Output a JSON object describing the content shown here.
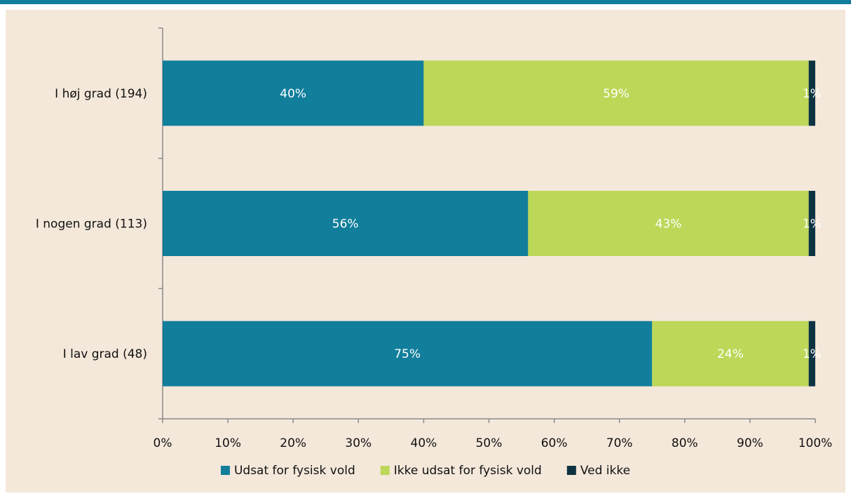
{
  "chart_data": {
    "type": "bar",
    "orientation": "horizontal",
    "stacked": true,
    "categories": [
      "I høj grad (194)",
      "I nogen grad (113)",
      "I lav grad (48)"
    ],
    "series": [
      {
        "name": "Udsat for fysisk vold",
        "values": [
          40,
          56,
          75
        ],
        "labels": [
          "40%",
          "56%",
          "75%"
        ],
        "color": "#117e9b"
      },
      {
        "name": "Ikke udsat for fysisk vold",
        "values": [
          59,
          43,
          24
        ],
        "labels": [
          "59%",
          "43%",
          "24%"
        ],
        "color": "#bdd758"
      },
      {
        "name": "Ved ikke",
        "values": [
          1,
          1,
          1
        ],
        "labels": [
          "1%",
          "1%",
          "1%"
        ],
        "color": "#0d3342"
      }
    ],
    "xlim": [
      0,
      100
    ],
    "xticks": [
      "0%",
      "10%",
      "20%",
      "30%",
      "40%",
      "50%",
      "60%",
      "70%",
      "80%",
      "90%",
      "100%"
    ],
    "grid": false,
    "legend_position": "bottom"
  },
  "colors": {
    "top_rule": "#117e9b",
    "background": "#f4e8da"
  }
}
